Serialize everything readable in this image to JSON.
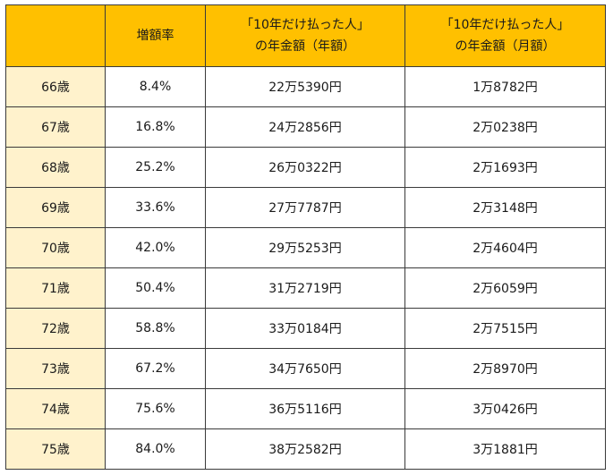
{
  "table": {
    "headers": {
      "age": "",
      "rate": "増額率",
      "annual": [
        "「10年だけ払った人」",
        "の年金額（年額）"
      ],
      "monthly": [
        "「10年だけ払った人」",
        "の年金額（月額）"
      ]
    },
    "rows": [
      {
        "age": "66歳",
        "rate": "8.4%",
        "annual": "22万5390円",
        "monthly": "1万8782円"
      },
      {
        "age": "67歳",
        "rate": "16.8%",
        "annual": "24万2856円",
        "monthly": "2万0238円"
      },
      {
        "age": "68歳",
        "rate": "25.2%",
        "annual": "26万0322円",
        "monthly": "2万1693円"
      },
      {
        "age": "69歳",
        "rate": "33.6%",
        "annual": "27万7787円",
        "monthly": "2万3148円"
      },
      {
        "age": "70歳",
        "rate": "42.0%",
        "annual": "29万5253円",
        "monthly": "2万4604円"
      },
      {
        "age": "71歳",
        "rate": "50.4%",
        "annual": "31万2719円",
        "monthly": "2万6059円"
      },
      {
        "age": "72歳",
        "rate": "58.8%",
        "annual": "33万0184円",
        "monthly": "2万7515円"
      },
      {
        "age": "73歳",
        "rate": "67.2%",
        "annual": "34万7650円",
        "monthly": "2万8970円"
      },
      {
        "age": "74歳",
        "rate": "75.6%",
        "annual": "36万5116円",
        "monthly": "3万0426円"
      },
      {
        "age": "75歳",
        "rate": "84.0%",
        "annual": "38万2582円",
        "monthly": "3万1881円"
      }
    ]
  },
  "colors": {
    "header_bg": "#ffc000",
    "age_cell_bg": "#fff2cc",
    "border": "#3a3a3a"
  }
}
